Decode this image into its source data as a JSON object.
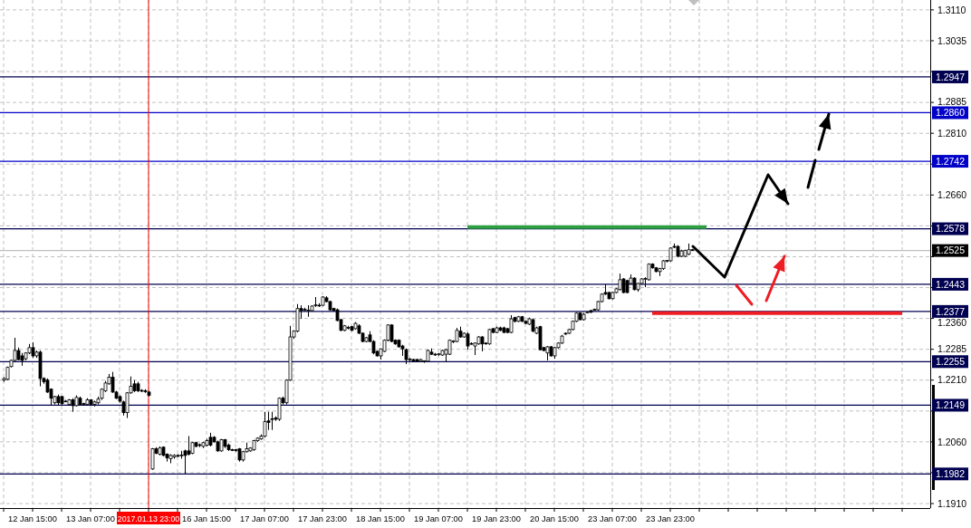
{
  "chart_data": {
    "type": "candlestick",
    "categories": [
      null,
      null,
      null,
      null,
      null,
      null,
      null,
      null,
      "12 Jan 15:00",
      null,
      null,
      null,
      null,
      null,
      null,
      null,
      null,
      null,
      null,
      null,
      null,
      null,
      null,
      null,
      "13 Jan 07:00",
      null,
      null,
      null,
      null,
      null,
      null,
      null,
      null,
      null,
      null,
      null,
      null,
      null,
      null,
      null,
      "2017.01.13 23:00",
      null,
      null,
      null,
      null,
      null,
      null,
      null,
      null,
      null,
      null,
      null,
      null,
      null,
      null,
      null,
      "16 Jan 15:00",
      null,
      null,
      null,
      null,
      null,
      null,
      null,
      null,
      null,
      null,
      null,
      null,
      null,
      null,
      null,
      "17 Jan 07:00",
      null,
      null,
      null,
      null,
      null,
      null,
      null,
      null,
      null,
      null,
      null,
      null,
      null,
      null,
      null,
      "17 Jan 23:00",
      null,
      null,
      null,
      null,
      null,
      null,
      null,
      null,
      null,
      null,
      null,
      null,
      null,
      null,
      null,
      "18 Jan 15:00",
      null,
      null,
      null,
      null,
      null,
      null,
      null,
      null,
      null,
      null,
      null,
      null,
      null,
      null,
      null,
      "19 Jan 07:00",
      null,
      null,
      null,
      null,
      null,
      null,
      null,
      null,
      null,
      null,
      null,
      null,
      null,
      null,
      null,
      "19 Jan 23:00",
      null,
      null,
      null,
      null,
      null,
      null,
      null,
      null,
      null,
      null,
      null,
      null,
      null,
      null,
      null,
      "20 Jan 15:00",
      null,
      null,
      null,
      null,
      null,
      null,
      null,
      null,
      null,
      null,
      null,
      null,
      null,
      null,
      null,
      "23 Jan 07:00",
      null,
      null,
      null,
      null,
      null,
      null,
      null,
      null,
      null,
      null,
      null,
      null,
      null,
      null,
      null,
      "23 Jan 23:00",
      null,
      null,
      null,
      null,
      null,
      null,
      null,
      null,
      null,
      null,
      null,
      null,
      null,
      null,
      null,
      null,
      null,
      null,
      null,
      null,
      null,
      null,
      null,
      null,
      null,
      null,
      null,
      null,
      null,
      null,
      null,
      null,
      null,
      null,
      null,
      null,
      null,
      null,
      null,
      null,
      null,
      null,
      null,
      null,
      null,
      null,
      null,
      null,
      null,
      null,
      null,
      null,
      null,
      null,
      null,
      null,
      null,
      null,
      null,
      null,
      null,
      null,
      null,
      null,
      null,
      null,
      null,
      null,
      null,
      null,
      null
    ],
    "ylim": [
      1.1899,
      1.3134
    ],
    "yticks": [
      {
        "value": 1.191,
        "label": "1.1910"
      },
      {
        "value": 1.1985,
        "label": null
      },
      {
        "value": 1.206,
        "label": "1.2060"
      },
      {
        "value": 1.2135,
        "label": null
      },
      {
        "value": 1.221,
        "label": "1.2210"
      },
      {
        "value": 1.2285,
        "label": "1.2285"
      },
      {
        "value": 1.236,
        "label": "1.2360"
      },
      {
        "value": 1.2435,
        "label": null
      },
      {
        "value": 1.251,
        "label": null
      },
      {
        "value": 1.2585,
        "label": null
      },
      {
        "value": 1.266,
        "label": "1.2660"
      },
      {
        "value": 1.2735,
        "label": null
      },
      {
        "value": 1.281,
        "label": "1.2810"
      },
      {
        "value": 1.2885,
        "label": "1.2885"
      },
      {
        "value": 1.296,
        "label": null
      },
      {
        "value": 1.3035,
        "label": "1.3035"
      },
      {
        "value": 1.311,
        "label": "1.3110"
      }
    ],
    "grid": true,
    "ohlc": [
      [
        1.221,
        1.2217,
        1.2206,
        1.2214
      ],
      [
        1.2212,
        1.2243,
        1.221,
        1.2241
      ],
      [
        1.2243,
        1.226,
        1.2241,
        1.2258
      ],
      [
        1.2258,
        1.2313,
        1.2256,
        1.2282
      ],
      [
        1.2282,
        1.2289,
        1.2258,
        1.226
      ],
      [
        1.2269,
        1.2276,
        1.2245,
        1.2258
      ],
      [
        1.2262,
        1.2278,
        1.2258,
        1.2276
      ],
      [
        1.2276,
        1.2298,
        1.2273,
        1.2289
      ],
      [
        1.2289,
        1.2302,
        1.2264,
        1.2269
      ],
      [
        1.2269,
        1.2282,
        1.2264,
        1.2278
      ],
      [
        1.2278,
        1.2282,
        1.2195,
        1.2214
      ],
      [
        1.2214,
        1.2217,
        1.2201,
        1.2206
      ],
      [
        1.221,
        1.2214,
        1.2179,
        1.2181
      ],
      [
        1.2188,
        1.219,
        1.2148,
        1.2166
      ],
      [
        1.2155,
        1.2172,
        1.2151,
        1.217
      ],
      [
        1.217,
        1.2175,
        1.2148,
        1.2155
      ],
      [
        1.217,
        1.2172,
        1.2148,
        1.2153
      ],
      [
        1.2159,
        1.2162,
        1.2157,
        1.2159
      ],
      [
        1.2151,
        1.2164,
        1.2148,
        1.2162
      ],
      [
        1.2162,
        1.2166,
        1.2133,
        1.2148
      ],
      [
        1.2148,
        1.2173,
        1.2146,
        1.2168
      ],
      [
        1.2166,
        1.217,
        1.2148,
        1.2151
      ],
      [
        1.2153,
        1.2155,
        1.2148,
        1.2152
      ],
      [
        1.2151,
        1.2166,
        1.2148,
        1.2162
      ],
      [
        1.2162,
        1.2164,
        1.2148,
        1.2151
      ],
      [
        1.2151,
        1.216,
        1.2146,
        1.2157
      ],
      [
        1.2155,
        1.217,
        1.2151,
        1.2164
      ],
      [
        1.2166,
        1.219,
        1.2162,
        1.2188
      ],
      [
        1.2184,
        1.2208,
        1.2181,
        1.2203
      ],
      [
        1.2201,
        1.2225,
        1.2199,
        1.2217
      ],
      [
        1.2217,
        1.223,
        1.2179,
        1.2181
      ],
      [
        1.2181,
        1.2184,
        1.2164,
        1.2166
      ],
      [
        1.217,
        1.2173,
        1.2155,
        1.2159
      ],
      [
        1.2157,
        1.216,
        1.2124,
        1.2131
      ],
      [
        1.2131,
        1.2181,
        1.2118,
        1.2179
      ],
      [
        1.2179,
        1.2219,
        1.2177,
        1.2195
      ],
      [
        1.2201,
        1.221,
        1.2181,
        1.2184
      ],
      [
        1.2201,
        1.2206,
        1.2181,
        1.2184
      ],
      [
        1.2184,
        1.2188,
        1.2181,
        1.2185
      ],
      [
        1.2184,
        1.2188,
        1.2179,
        1.2183
      ],
      [
        1.2181,
        1.2184,
        1.217,
        1.2173
      ],
      [
        1.1994,
        1.2045,
        1.1992,
        1.2043
      ],
      [
        1.2043,
        1.2047,
        1.203,
        1.2032
      ],
      [
        1.203,
        1.2049,
        1.2027,
        1.2045
      ],
      [
        1.2047,
        1.2049,
        1.2025,
        1.2027
      ],
      [
        1.203,
        1.2032,
        1.2012,
        1.2021
      ],
      [
        1.2019,
        1.203,
        1.2008,
        1.2027
      ],
      [
        1.2023,
        1.203,
        1.2019,
        1.2027
      ],
      [
        1.2027,
        1.203,
        1.2023,
        1.2025
      ],
      [
        1.2027,
        1.2038,
        1.2019,
        1.2028
      ],
      [
        1.2038,
        1.2041,
        1.1983,
        1.2027
      ],
      [
        1.2038,
        1.2074,
        1.2027,
        1.203
      ],
      [
        1.2032,
        1.206,
        1.203,
        1.2058
      ],
      [
        1.2058,
        1.206,
        1.2047,
        1.2049
      ],
      [
        1.2052,
        1.2056,
        1.2047,
        1.2053
      ],
      [
        1.2049,
        1.206,
        1.2045,
        1.2058
      ],
      [
        1.2052,
        1.2067,
        1.2049,
        1.2063
      ],
      [
        1.2071,
        1.2082,
        1.2049,
        1.2052
      ],
      [
        1.2071,
        1.2074,
        1.2058,
        1.206
      ],
      [
        1.206,
        1.2063,
        1.2036,
        1.2038
      ],
      [
        1.2038,
        1.2067,
        1.2036,
        1.2065
      ],
      [
        1.2065,
        1.2067,
        1.2045,
        1.2049
      ],
      [
        1.2052,
        1.2056,
        1.2038,
        1.2041
      ],
      [
        1.2041,
        1.2043,
        1.2038,
        1.204
      ],
      [
        1.2041,
        1.2043,
        1.2036,
        1.2039
      ],
      [
        1.2043,
        1.2045,
        1.2012,
        1.2016
      ],
      [
        1.2016,
        1.2038,
        1.2012,
        1.2036
      ],
      [
        1.2036,
        1.2058,
        1.2034,
        1.2043
      ],
      [
        1.2038,
        1.2047,
        1.2036,
        1.2045
      ],
      [
        1.2041,
        1.2065,
        1.2038,
        1.2063
      ],
      [
        1.2063,
        1.2071,
        1.206,
        1.2069
      ],
      [
        1.2067,
        1.2078,
        1.2065,
        1.2074
      ],
      [
        1.2074,
        1.2133,
        1.2071,
        1.2109
      ],
      [
        1.2111,
        1.2133,
        1.2089,
        1.2107
      ],
      [
        1.2115,
        1.2133,
        1.2089,
        1.2116
      ],
      [
        1.2118,
        1.2122,
        1.2111,
        1.2115
      ],
      [
        1.2115,
        1.2168,
        1.2111,
        1.2166
      ],
      [
        1.2166,
        1.217,
        1.2151,
        1.2155
      ],
      [
        1.2155,
        1.2212,
        1.2151,
        1.221
      ],
      [
        1.221,
        1.2342,
        1.2208,
        1.2315
      ],
      [
        1.2315,
        1.2331,
        1.2311,
        1.2329
      ],
      [
        1.2329,
        1.2395,
        1.2326,
        1.2384
      ],
      [
        1.2384,
        1.2392,
        1.2359,
        1.2379
      ],
      [
        1.2381,
        1.2386,
        1.2377,
        1.2382
      ],
      [
        1.2379,
        1.2392,
        1.2364,
        1.238
      ],
      [
        1.2379,
        1.2392,
        1.2377,
        1.239
      ],
      [
        1.2392,
        1.2412,
        1.2388,
        1.2393
      ],
      [
        1.2392,
        1.2397,
        1.2388,
        1.2391
      ],
      [
        1.2392,
        1.2414,
        1.239,
        1.2412
      ],
      [
        1.241,
        1.2414,
        1.2399,
        1.2401
      ],
      [
        1.2401,
        1.2403,
        1.2379,
        1.2381
      ],
      [
        1.2384,
        1.2386,
        1.2377,
        1.2379
      ],
      [
        1.2381,
        1.2384,
        1.2353,
        1.2355
      ],
      [
        1.2357,
        1.2359,
        1.2329,
        1.2331
      ],
      [
        1.2331,
        1.2344,
        1.2329,
        1.2342
      ],
      [
        1.2337,
        1.2342,
        1.2333,
        1.2338
      ],
      [
        1.234,
        1.2342,
        1.2329,
        1.2331
      ],
      [
        1.2335,
        1.2351,
        1.2333,
        1.2348
      ],
      [
        1.2342,
        1.2346,
        1.2322,
        1.2324
      ],
      [
        1.2324,
        1.2326,
        1.2302,
        1.2304
      ],
      [
        1.2304,
        1.2315,
        1.2302,
        1.2313
      ],
      [
        1.232,
        1.2329,
        1.2302,
        1.2304
      ],
      [
        1.2304,
        1.2307,
        1.2273,
        1.2276
      ],
      [
        1.228,
        1.2282,
        1.2267,
        1.2269
      ],
      [
        1.2269,
        1.2287,
        1.226,
        1.2286
      ],
      [
        1.228,
        1.2309,
        1.2278,
        1.2307
      ],
      [
        1.2307,
        1.2346,
        1.2304,
        1.2344
      ],
      [
        1.2344,
        1.2346,
        1.2302,
        1.2304
      ],
      [
        1.2307,
        1.2309,
        1.2296,
        1.2298
      ],
      [
        1.2307,
        1.2309,
        1.2289,
        1.2291
      ],
      [
        1.2293,
        1.2296,
        1.2269,
        1.2286
      ],
      [
        1.2284,
        1.2287,
        1.2249,
        1.226
      ],
      [
        1.226,
        1.2264,
        1.2256,
        1.2261
      ],
      [
        1.226,
        1.2262,
        1.2254,
        1.2256
      ],
      [
        1.226,
        1.2262,
        1.2254,
        1.2256
      ],
      [
        1.2256,
        1.2262,
        1.2254,
        1.226
      ],
      [
        1.2256,
        1.2258,
        1.2252,
        1.2257
      ],
      [
        1.2256,
        1.2284,
        1.2254,
        1.2282
      ],
      [
        1.2278,
        1.2287,
        1.2271,
        1.2273
      ],
      [
        1.2273,
        1.2276,
        1.2269,
        1.2272
      ],
      [
        1.2273,
        1.2276,
        1.2269,
        1.2274
      ],
      [
        1.2271,
        1.2284,
        1.2269,
        1.2282
      ],
      [
        1.2273,
        1.2286,
        1.2254,
        1.2284
      ],
      [
        1.2273,
        1.2309,
        1.2271,
        1.2307
      ],
      [
        1.2304,
        1.2307,
        1.23,
        1.2305
      ],
      [
        1.2304,
        1.2337,
        1.2302,
        1.2331
      ],
      [
        1.2329,
        1.234,
        1.2313,
        1.2315
      ],
      [
        1.2315,
        1.2326,
        1.2313,
        1.2324
      ],
      [
        1.2322,
        1.2326,
        1.2284,
        1.2293
      ],
      [
        1.2298,
        1.2302,
        1.2296,
        1.2299
      ],
      [
        1.2293,
        1.2302,
        1.2271,
        1.23
      ],
      [
        1.2298,
        1.2317,
        1.2296,
        1.2315
      ],
      [
        1.2315,
        1.2317,
        1.228,
        1.2298
      ],
      [
        1.23,
        1.2302,
        1.2296,
        1.2299
      ],
      [
        1.2298,
        1.2335,
        1.2296,
        1.2333
      ],
      [
        1.2335,
        1.2337,
        1.2324,
        1.2326
      ],
      [
        1.2326,
        1.234,
        1.2324,
        1.2337
      ],
      [
        1.2337,
        1.234,
        1.2329,
        1.2331
      ],
      [
        1.2337,
        1.234,
        1.2324,
        1.2326
      ],
      [
        1.2335,
        1.2337,
        1.2324,
        1.2326
      ],
      [
        1.2326,
        1.2368,
        1.2324,
        1.2359
      ],
      [
        1.2362,
        1.2364,
        1.235,
        1.2353
      ],
      [
        1.2353,
        1.2366,
        1.2351,
        1.2364
      ],
      [
        1.2364,
        1.2366,
        1.2351,
        1.2353
      ],
      [
        1.2353,
        1.2355,
        1.2346,
        1.2348
      ],
      [
        1.2346,
        1.2362,
        1.2344,
        1.2359
      ],
      [
        1.2357,
        1.2359,
        1.2326,
        1.2329
      ],
      [
        1.2324,
        1.234,
        1.2322,
        1.2337
      ],
      [
        1.234,
        1.2342,
        1.2282,
        1.2284
      ],
      [
        1.2289,
        1.2291,
        1.228,
        1.2282
      ],
      [
        1.2276,
        1.2293,
        1.2258,
        1.2291
      ],
      [
        1.2291,
        1.2293,
        1.2267,
        1.2269
      ],
      [
        1.2269,
        1.2291,
        1.2262,
        1.2289
      ],
      [
        1.2289,
        1.2302,
        1.2287,
        1.23
      ],
      [
        1.23,
        1.232,
        1.2298,
        1.2317
      ],
      [
        1.2322,
        1.2326,
        1.232,
        1.2324
      ],
      [
        1.2324,
        1.2335,
        1.2322,
        1.2333
      ],
      [
        1.2333,
        1.2355,
        1.2331,
        1.2353
      ],
      [
        1.2353,
        1.2375,
        1.2351,
        1.2373
      ],
      [
        1.2373,
        1.2375,
        1.2355,
        1.2357
      ],
      [
        1.2357,
        1.2373,
        1.2355,
        1.237
      ],
      [
        1.2374,
        1.2377,
        1.2373,
        1.2375
      ],
      [
        1.2379,
        1.2381,
        1.2373,
        1.2375
      ],
      [
        1.2381,
        1.2384,
        1.2379,
        1.2382
      ],
      [
        1.2381,
        1.2403,
        1.2379,
        1.2401
      ],
      [
        1.2401,
        1.2421,
        1.2399,
        1.2419
      ],
      [
        1.2423,
        1.2443,
        1.2417,
        1.2419
      ],
      [
        1.2423,
        1.2425,
        1.2406,
        1.2408
      ],
      [
        1.2408,
        1.2425,
        1.2406,
        1.2423
      ],
      [
        1.2423,
        1.2434,
        1.2421,
        1.2432
      ],
      [
        1.243,
        1.2469,
        1.2428,
        1.2454
      ],
      [
        1.2456,
        1.2458,
        1.2421,
        1.2423
      ],
      [
        1.2452,
        1.2454,
        1.2421,
        1.2423
      ],
      [
        1.2445,
        1.2467,
        1.2443,
        1.2458
      ],
      [
        1.2458,
        1.246,
        1.2428,
        1.243
      ],
      [
        1.243,
        1.2447,
        1.2425,
        1.2445
      ],
      [
        1.2445,
        1.2458,
        1.2443,
        1.2456
      ],
      [
        1.2456,
        1.246,
        1.2436,
        1.2457
      ],
      [
        1.2454,
        1.2494,
        1.2452,
        1.2492
      ],
      [
        1.2492,
        1.2494,
        1.2481,
        1.2483
      ],
      [
        1.2483,
        1.2485,
        1.2472,
        1.2474
      ],
      [
        1.2474,
        1.2483,
        1.2463,
        1.2481
      ],
      [
        1.2481,
        1.2502,
        1.2478,
        1.25
      ],
      [
        1.25,
        1.2502,
        1.2496,
        1.2501
      ],
      [
        1.25,
        1.2533,
        1.2498,
        1.2531
      ],
      [
        1.2535,
        1.2542,
        1.2531,
        1.2533
      ],
      [
        1.2535,
        1.2538,
        1.2509,
        1.2511
      ],
      [
        1.2511,
        1.2527,
        1.2509,
        1.2524
      ],
      [
        1.2511,
        1.2527,
        1.2509,
        1.2525
      ],
      [
        1.2516,
        1.2542,
        1.2514,
        1.2527
      ],
      [
        1.2527,
        1.2529,
        1.2524,
        1.2525
      ],
      null,
      null,
      null,
      null,
      null,
      null,
      null,
      null,
      null,
      null,
      null,
      null,
      null,
      null,
      null,
      null,
      null,
      null,
      null,
      null,
      null,
      null,
      null,
      null,
      null,
      null,
      null,
      null,
      null,
      null,
      null,
      null,
      null,
      null,
      null,
      null,
      null,
      null,
      null,
      null,
      null,
      null,
      null,
      null,
      null,
      null,
      null,
      null,
      null,
      null,
      null,
      null,
      null,
      null,
      null,
      null,
      null,
      null,
      null,
      null,
      null,
      null,
      null,
      null,
      null
    ],
    "series": [
      {
        "type": "line",
        "color": "#2ea043",
        "values": [
          null,
          null,
          null,
          null,
          null,
          null,
          null,
          null,
          null,
          null,
          null,
          null,
          null,
          null,
          null,
          null,
          null,
          null,
          null,
          null,
          null,
          null,
          null,
          null,
          null,
          null,
          null,
          null,
          null,
          null,
          null,
          null,
          null,
          null,
          null,
          null,
          null,
          null,
          null,
          null,
          null,
          null,
          null,
          null,
          null,
          null,
          null,
          null,
          null,
          null,
          null,
          null,
          null,
          null,
          null,
          null,
          null,
          null,
          null,
          null,
          null,
          null,
          null,
          null,
          null,
          null,
          null,
          null,
          null,
          null,
          null,
          null,
          null,
          null,
          null,
          null,
          null,
          null,
          null,
          null,
          null,
          null,
          null,
          null,
          null,
          null,
          null,
          null,
          null,
          null,
          null,
          null,
          null,
          null,
          null,
          null,
          null,
          null,
          null,
          null,
          null,
          null,
          null,
          null,
          null,
          null,
          null,
          null,
          null,
          null,
          null,
          null,
          null,
          null,
          null,
          null,
          null,
          null,
          null,
          null,
          null,
          null,
          null,
          null,
          null,
          null,
          null,
          null,
          1.2582,
          1.2582,
          1.2582,
          1.2582,
          1.2582,
          1.2582,
          1.2582,
          1.2582,
          1.2582,
          1.2582,
          1.2582,
          1.2582,
          1.2582,
          1.2582,
          1.2582,
          1.2582,
          1.2582,
          1.2582,
          1.2582,
          1.2582,
          1.2582,
          1.2582,
          1.2582,
          1.2582,
          1.2582,
          1.2582,
          1.2582,
          1.2582,
          1.2582,
          1.2582,
          1.2582,
          1.2582,
          1.2582,
          1.2582,
          1.2582,
          1.2582,
          1.2582,
          1.2582,
          1.2582,
          1.2582,
          1.2582,
          1.2582,
          1.2582,
          1.2582,
          1.2582,
          1.2582,
          1.2582,
          1.2582,
          1.2582,
          1.2582,
          1.2582,
          1.2582,
          1.2582,
          1.2582,
          1.2582,
          1.2582,
          1.2582,
          1.2582,
          1.2582,
          1.2582,
          1.2582,
          1.2582,
          1.2582,
          1.2582,
          1.2582,
          1.2582,
          1.2582,
          null,
          null,
          null,
          null,
          null,
          null,
          null,
          null,
          null,
          null,
          null,
          null,
          null,
          null,
          null,
          null,
          null,
          null,
          null,
          null,
          null,
          null,
          null,
          null,
          null,
          null,
          null,
          null,
          null,
          null,
          null,
          null,
          null,
          null,
          null,
          null,
          null,
          null,
          null,
          null,
          null,
          null,
          null,
          null,
          null,
          null,
          null,
          null,
          null,
          null,
          null,
          null,
          null,
          null,
          null,
          null,
          null,
          null,
          null,
          null,
          null
        ]
      },
      {
        "type": "line",
        "color": "#ee1c24",
        "values": [
          null,
          null,
          null,
          null,
          null,
          null,
          null,
          null,
          null,
          null,
          null,
          null,
          null,
          null,
          null,
          null,
          null,
          null,
          null,
          null,
          null,
          null,
          null,
          null,
          null,
          null,
          null,
          null,
          null,
          null,
          null,
          null,
          null,
          null,
          null,
          null,
          null,
          null,
          null,
          null,
          null,
          null,
          null,
          null,
          null,
          null,
          null,
          null,
          null,
          null,
          null,
          null,
          null,
          null,
          null,
          null,
          null,
          null,
          null,
          null,
          null,
          null,
          null,
          null,
          null,
          null,
          null,
          null,
          null,
          null,
          null,
          null,
          null,
          null,
          null,
          null,
          null,
          null,
          null,
          null,
          null,
          null,
          null,
          null,
          null,
          null,
          null,
          null,
          null,
          null,
          null,
          null,
          null,
          null,
          null,
          null,
          null,
          null,
          null,
          null,
          null,
          null,
          null,
          null,
          null,
          null,
          null,
          null,
          null,
          null,
          null,
          null,
          null,
          null,
          null,
          null,
          null,
          null,
          null,
          null,
          null,
          null,
          null,
          null,
          null,
          null,
          null,
          null,
          null,
          null,
          null,
          null,
          null,
          null,
          null,
          null,
          null,
          null,
          null,
          null,
          null,
          null,
          null,
          null,
          null,
          null,
          null,
          null,
          null,
          null,
          null,
          null,
          null,
          null,
          null,
          null,
          null,
          null,
          null,
          null,
          null,
          null,
          null,
          null,
          null,
          null,
          null,
          null,
          null,
          null,
          null,
          null,
          null,
          null,
          null,
          null,
          null,
          null,
          null,
          1.2373,
          1.2373,
          1.2373,
          1.2373,
          1.2373,
          1.2373,
          1.2373,
          1.2373,
          1.2373,
          1.2373,
          1.2373,
          1.2373,
          1.2373,
          1.2373,
          1.2373,
          1.2373,
          1.2373,
          1.2373,
          1.2373,
          1.2373,
          1.2373,
          1.2373,
          1.2373,
          1.2373,
          1.2373,
          1.2373,
          1.2373,
          1.2373,
          1.2373,
          1.2373,
          1.2373,
          1.2373,
          1.2373,
          1.2373,
          1.2373,
          1.2373,
          1.2373,
          1.2373,
          1.2373,
          1.2373,
          1.2373,
          1.2373,
          1.2373,
          1.2373,
          1.2373,
          1.2373,
          1.2373,
          1.2373,
          1.2373,
          1.2373,
          1.2373,
          1.2373,
          1.2373,
          1.2373,
          1.2373,
          1.2373,
          1.2373,
          1.2373,
          1.2373,
          1.2373,
          1.2373,
          1.2373,
          1.2373,
          1.2373,
          1.2373,
          1.2373,
          1.2373,
          1.2373,
          1.2373,
          1.2373,
          null,
          null,
          null,
          null,
          null,
          null,
          null
        ]
      }
    ],
    "ref_lines": [
      {
        "axis": "y",
        "value": 1.2947,
        "label": "1.2947",
        "color": "#000050"
      },
      {
        "axis": "y",
        "value": 1.286,
        "label": "1.2860",
        "color": "#0000c8"
      },
      {
        "axis": "y",
        "value": 1.2742,
        "label": "1.2742",
        "color": "#0000c8"
      },
      {
        "axis": "y",
        "value": 1.2578,
        "label": "1.2578",
        "color": "#000050"
      },
      {
        "axis": "y",
        "value": 1.2525,
        "label": "1.2525",
        "color": "#c0c0c0"
      },
      {
        "axis": "y",
        "value": 1.2443,
        "label": "1.2443",
        "color": "#000050"
      },
      {
        "axis": "y",
        "value": 1.2377,
        "label": "1.2377",
        "color": "#000050"
      },
      {
        "axis": "y",
        "value": 1.2255,
        "label": "1.2255",
        "color": "#000050"
      },
      {
        "axis": "y",
        "value": 1.2149,
        "label": "1.2149",
        "color": "#000050"
      },
      {
        "axis": "y",
        "value": 1.1982,
        "label": "1.1982",
        "color": "#000050"
      },
      {
        "axis": "x",
        "value": "2017.01.13 23:00",
        "color": "#ff0000"
      }
    ]
  }
}
